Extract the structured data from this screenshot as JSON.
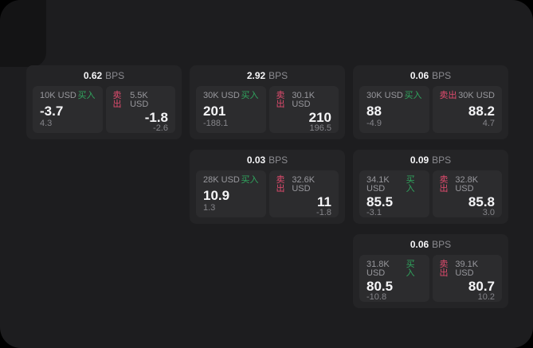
{
  "labels": {
    "bps_suffix": "BPS",
    "buy": "买入",
    "sell": "卖出"
  },
  "colors": {
    "page_background": "#1d1d1f",
    "card_background": "#242426",
    "panel_background": "#2c2c2e",
    "buy_green": "#30a55e",
    "sell_red": "#e14b6e",
    "primary_text": "#f5f5f7",
    "muted_text": "#98989d"
  },
  "cards": [
    {
      "bps": "0.62",
      "buy": {
        "size": "10K USD",
        "value": "-3.7",
        "delta": "4.3"
      },
      "sell": {
        "size": "5.5K USD",
        "value": "-1.8",
        "delta": "-2.6"
      }
    },
    {
      "bps": "2.92",
      "buy": {
        "size": "30K USD",
        "value": "201",
        "delta": "-188.1"
      },
      "sell": {
        "size": "30.1K USD",
        "value": "210",
        "delta": "196.5"
      }
    },
    {
      "bps": "0.06",
      "buy": {
        "size": "30K USD",
        "value": "88",
        "delta": "-4.9"
      },
      "sell": {
        "size": "30K USD",
        "value": "88.2",
        "delta": "4.7"
      }
    },
    {
      "bps": "0.03",
      "buy": {
        "size": "28K USD",
        "value": "10.9",
        "delta": "1.3"
      },
      "sell": {
        "size": "32.6K USD",
        "value": "11",
        "delta": "-1.8"
      }
    },
    {
      "bps": "0.09",
      "buy": {
        "size": "34.1K USD",
        "value": "85.5",
        "delta": "-3.1"
      },
      "sell": {
        "size": "32.8K USD",
        "value": "85.8",
        "delta": "3.0"
      }
    },
    {
      "bps": "0.06",
      "buy": {
        "size": "31.8K USD",
        "value": "80.5",
        "delta": "-10.8"
      },
      "sell": {
        "size": "39.1K USD",
        "value": "80.7",
        "delta": "10.2"
      }
    }
  ]
}
